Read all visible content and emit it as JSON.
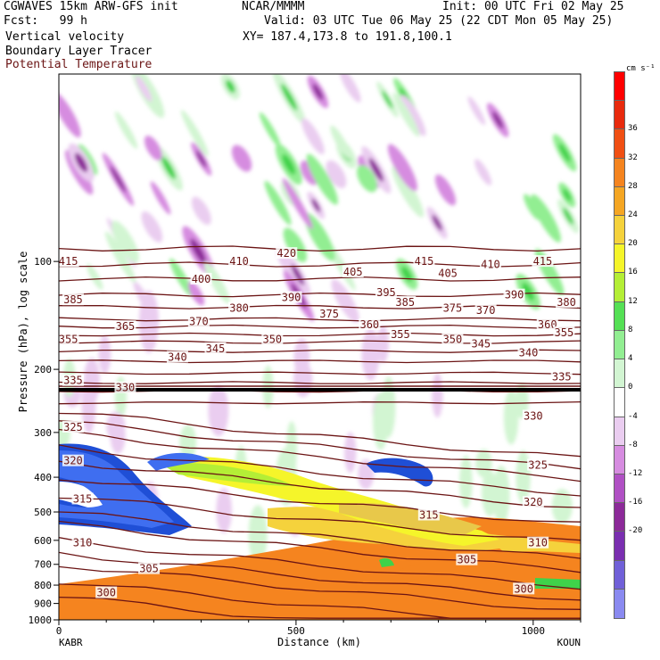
{
  "header": {
    "model": "CGWAVES 15km ARW-GFS init",
    "org": "NCAR/MMMM",
    "init": "Init: 00 UTC Fri 02 May 25",
    "fcst": "Fcst:   99 h",
    "valid": "Valid: 03 UTC Tue 06 May 25 (22 CDT Mon 05 May 25)",
    "xy": "XY= 187.4,173.8 to 191.8,100.1",
    "field1": "Vertical velocity",
    "field2": "Boundary Layer Tracer",
    "field3": "Potential Temperature"
  },
  "colors": {
    "theta": "#6b1414",
    "tracer_orange": "#f5841f",
    "tracer_yellow": "#f5f52a",
    "tracer_blue": "#1f4fd6",
    "up_green": "#3fd24a",
    "down_purple": "#8c2a99"
  },
  "chart_data": {
    "type": "heatmap",
    "xlabel": "Distance (km)",
    "ylabel": "Pressure (hPa), log scale",
    "x_ticks": [
      "0",
      "500",
      "1000"
    ],
    "y_ticks": [
      "100",
      "200",
      "300",
      "400",
      "500",
      "600",
      "700",
      "800",
      "900",
      "1000"
    ],
    "xlim": [
      0,
      1100
    ],
    "ylim": [
      1000,
      30
    ],
    "y_scale": "log",
    "left_station": "KABR",
    "right_station": "KOUN",
    "colorbar_unit": "cm s⁻¹",
    "colorbar_levels": [
      "36",
      "32",
      "28",
      "24",
      "20",
      "16",
      "12",
      "8",
      "4",
      "0",
      "-4",
      "-8",
      "-12",
      "-16",
      "-20"
    ],
    "colorbar_colors": [
      "#ff0000",
      "#e82a0d",
      "#f04f13",
      "#f5841f",
      "#f5a623",
      "#f5d23c",
      "#f5f52a",
      "#b4ee36",
      "#55e055",
      "#92ee92",
      "#d2f5d2",
      "#ffffff",
      "#eacdf0",
      "#d68ce0",
      "#b050c4",
      "#8c2a99",
      "#7a2fb0",
      "#7060d8",
      "#8a8af0"
    ],
    "theta_labels": [
      {
        "v": "415",
        "x": 20,
        "p": 100
      },
      {
        "v": "410",
        "x": 380,
        "p": 100
      },
      {
        "v": "420",
        "x": 480,
        "p": 95
      },
      {
        "v": "415",
        "x": 770,
        "p": 100
      },
      {
        "v": "410",
        "x": 910,
        "p": 102
      },
      {
        "v": "415",
        "x": 1020,
        "p": 100
      },
      {
        "v": "400",
        "x": 300,
        "p": 112
      },
      {
        "v": "405",
        "x": 620,
        "p": 107
      },
      {
        "v": "405",
        "x": 820,
        "p": 108
      },
      {
        "v": "385",
        "x": 30,
        "p": 128
      },
      {
        "v": "380",
        "x": 380,
        "p": 135
      },
      {
        "v": "390",
        "x": 490,
        "p": 126
      },
      {
        "v": "395",
        "x": 690,
        "p": 122
      },
      {
        "v": "385",
        "x": 730,
        "p": 130
      },
      {
        "v": "375",
        "x": 830,
        "p": 135
      },
      {
        "v": "370",
        "x": 900,
        "p": 137
      },
      {
        "v": "390",
        "x": 960,
        "p": 124
      },
      {
        "v": "380",
        "x": 1070,
        "p": 130
      },
      {
        "v": "375",
        "x": 570,
        "p": 140
      },
      {
        "v": "370",
        "x": 295,
        "p": 147
      },
      {
        "v": "360",
        "x": 655,
        "p": 150
      },
      {
        "v": "360",
        "x": 1030,
        "p": 150
      },
      {
        "v": "365",
        "x": 140,
        "p": 152
      },
      {
        "v": "355",
        "x": 20,
        "p": 165
      },
      {
        "v": "350",
        "x": 450,
        "p": 165
      },
      {
        "v": "355",
        "x": 720,
        "p": 160
      },
      {
        "v": "350",
        "x": 830,
        "p": 165
      },
      {
        "v": "345",
        "x": 890,
        "p": 170
      },
      {
        "v": "355",
        "x": 1065,
        "p": 158
      },
      {
        "v": "340",
        "x": 250,
        "p": 185
      },
      {
        "v": "345",
        "x": 330,
        "p": 175
      },
      {
        "v": "340",
        "x": 990,
        "p": 180
      },
      {
        "v": "335",
        "x": 30,
        "p": 215
      },
      {
        "v": "330",
        "x": 140,
        "p": 225
      },
      {
        "v": "335",
        "x": 1060,
        "p": 210
      },
      {
        "v": "330",
        "x": 1000,
        "p": 270
      },
      {
        "v": "325",
        "x": 30,
        "p": 290
      },
      {
        "v": "325",
        "x": 1010,
        "p": 370
      },
      {
        "v": "320",
        "x": 30,
        "p": 360
      },
      {
        "v": "320",
        "x": 1000,
        "p": 470
      },
      {
        "v": "315",
        "x": 50,
        "p": 460
      },
      {
        "v": "315",
        "x": 780,
        "p": 510
      },
      {
        "v": "310",
        "x": 50,
        "p": 610
      },
      {
        "v": "310",
        "x": 1010,
        "p": 610
      },
      {
        "v": "305",
        "x": 190,
        "p": 720
      },
      {
        "v": "305",
        "x": 860,
        "p": 680
      },
      {
        "v": "300",
        "x": 100,
        "p": 840
      },
      {
        "v": "300",
        "x": 980,
        "p": 820
      }
    ]
  }
}
